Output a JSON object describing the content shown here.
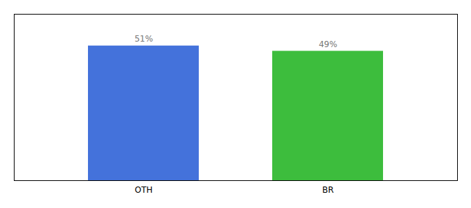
{
  "chart_data": {
    "type": "bar",
    "categories": [
      "OTH",
      "BR"
    ],
    "values": [
      51,
      49
    ],
    "colors": [
      "#4472db",
      "#3dbd3d"
    ],
    "ylim": [
      0,
      63
    ],
    "yticks": [],
    "tick_labels": "x",
    "data_labels": true,
    "value_labels": [
      "51%",
      "49%"
    ]
  }
}
